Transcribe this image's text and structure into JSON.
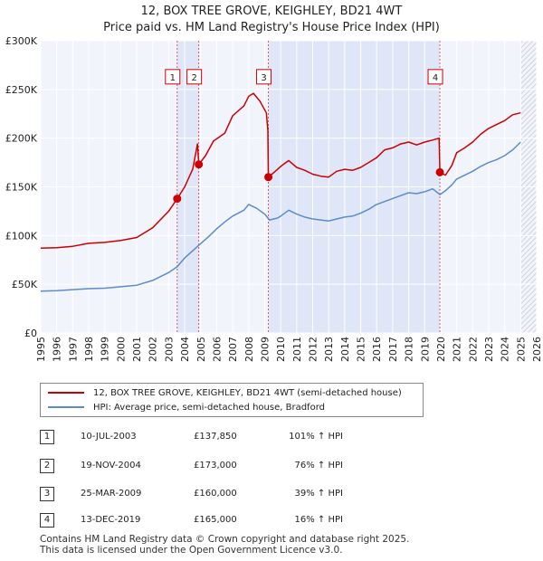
{
  "title": {
    "line1": "12, BOX TREE GROVE, KEIGHLEY, BD21 4WT",
    "line2": "Price paid vs. HM Land Registry's House Price Index (HPI)"
  },
  "chart_data": {
    "type": "line",
    "x_range": [
      1995,
      2026
    ],
    "y_range": [
      0,
      300000
    ],
    "y_ticks": [
      {
        "value": 0,
        "label": "£0"
      },
      {
        "value": 50000,
        "label": "£50K"
      },
      {
        "value": 100000,
        "label": "£100K"
      },
      {
        "value": 150000,
        "label": "£150K"
      },
      {
        "value": 200000,
        "label": "£200K"
      },
      {
        "value": 250000,
        "label": "£250K"
      },
      {
        "value": 300000,
        "label": "£300K"
      }
    ],
    "x_ticks": [
      "1995",
      "1996",
      "1997",
      "1998",
      "1999",
      "2000",
      "2001",
      "2002",
      "2003",
      "2004",
      "2005",
      "2006",
      "2007",
      "2008",
      "2009",
      "2010",
      "2011",
      "2012",
      "2013",
      "2014",
      "2015",
      "2016",
      "2017",
      "2018",
      "2019",
      "2020",
      "2021",
      "2022",
      "2023",
      "2024",
      "2025",
      "2026"
    ],
    "shaded_periods": [
      [
        2003.53,
        2004.88
      ],
      [
        2009.23,
        2019.95
      ]
    ],
    "hatched_from": 2025.0,
    "series": [
      {
        "name": "12, BOX TREE GROVE, KEIGHLEY, BD21 4WT (semi-detached house)",
        "color": "#cc0000",
        "points": [
          [
            1995,
            87000
          ],
          [
            1996,
            87500
          ],
          [
            1997,
            89000
          ],
          [
            1998,
            92000
          ],
          [
            1999,
            93000
          ],
          [
            2000,
            95000
          ],
          [
            2001,
            98000
          ],
          [
            2002,
            108000
          ],
          [
            2003,
            125000
          ],
          [
            2003.53,
            137850
          ],
          [
            2004,
            150000
          ],
          [
            2004.5,
            168000
          ],
          [
            2004.8,
            194000
          ],
          [
            2004.88,
            173000
          ],
          [
            2005.3,
            182000
          ],
          [
            2005.8,
            197000
          ],
          [
            2006.5,
            205000
          ],
          [
            2007,
            223000
          ],
          [
            2007.7,
            233000
          ],
          [
            2008,
            243000
          ],
          [
            2008.3,
            246000
          ],
          [
            2008.7,
            238000
          ],
          [
            2009.1,
            226000
          ],
          [
            2009.2,
            208000
          ],
          [
            2009.23,
            160000
          ],
          [
            2009.6,
            165000
          ],
          [
            2010,
            171000
          ],
          [
            2010.5,
            177000
          ],
          [
            2011,
            170000
          ],
          [
            2011.5,
            167000
          ],
          [
            2012,
            163000
          ],
          [
            2012.5,
            161000
          ],
          [
            2013,
            160000
          ],
          [
            2013.5,
            166000
          ],
          [
            2014,
            168000
          ],
          [
            2014.5,
            167000
          ],
          [
            2015,
            170000
          ],
          [
            2015.5,
            175000
          ],
          [
            2016,
            180000
          ],
          [
            2016.5,
            188000
          ],
          [
            2017,
            190000
          ],
          [
            2017.5,
            194000
          ],
          [
            2018,
            196000
          ],
          [
            2018.5,
            193000
          ],
          [
            2019,
            196000
          ],
          [
            2019.5,
            198000
          ],
          [
            2019.9,
            200000
          ],
          [
            2019.95,
            165000
          ],
          [
            2020.3,
            162000
          ],
          [
            2020.7,
            172000
          ],
          [
            2021,
            185000
          ],
          [
            2021.5,
            190000
          ],
          [
            2022,
            196000
          ],
          [
            2022.5,
            204000
          ],
          [
            2023,
            210000
          ],
          [
            2023.5,
            214000
          ],
          [
            2024,
            218000
          ],
          [
            2024.5,
            224000
          ],
          [
            2025,
            226000
          ]
        ]
      },
      {
        "name": "HPI: Average price, semi-detached house, Bradford",
        "color": "#5b8cc8",
        "points": [
          [
            1995,
            43000
          ],
          [
            1996,
            43500
          ],
          [
            1997,
            44500
          ],
          [
            1998,
            45500
          ],
          [
            1999,
            46000
          ],
          [
            2000,
            47500
          ],
          [
            2001,
            49000
          ],
          [
            2002,
            54000
          ],
          [
            2003,
            62000
          ],
          [
            2003.53,
            68000
          ],
          [
            2004,
            77000
          ],
          [
            2004.88,
            90000
          ],
          [
            2005.5,
            99000
          ],
          [
            2006,
            107000
          ],
          [
            2006.5,
            114000
          ],
          [
            2007,
            120000
          ],
          [
            2007.7,
            126000
          ],
          [
            2008,
            132000
          ],
          [
            2008.5,
            128000
          ],
          [
            2009,
            122000
          ],
          [
            2009.3,
            116000
          ],
          [
            2009.8,
            118000
          ],
          [
            2010,
            120000
          ],
          [
            2010.5,
            126000
          ],
          [
            2011,
            122000
          ],
          [
            2011.5,
            119000
          ],
          [
            2012,
            117000
          ],
          [
            2012.5,
            116000
          ],
          [
            2013,
            115000
          ],
          [
            2013.5,
            117000
          ],
          [
            2014,
            119000
          ],
          [
            2014.5,
            120000
          ],
          [
            2015,
            123000
          ],
          [
            2015.5,
            127000
          ],
          [
            2016,
            132000
          ],
          [
            2016.5,
            135000
          ],
          [
            2017,
            138000
          ],
          [
            2017.5,
            141000
          ],
          [
            2018,
            144000
          ],
          [
            2018.5,
            143000
          ],
          [
            2019,
            145000
          ],
          [
            2019.5,
            148000
          ],
          [
            2019.95,
            142000
          ],
          [
            2020.3,
            146000
          ],
          [
            2020.7,
            152000
          ],
          [
            2021,
            158000
          ],
          [
            2021.5,
            162000
          ],
          [
            2022,
            166000
          ],
          [
            2022.5,
            171000
          ],
          [
            2023,
            175000
          ],
          [
            2023.5,
            178000
          ],
          [
            2024,
            182000
          ],
          [
            2024.5,
            188000
          ],
          [
            2025,
            196000
          ]
        ]
      }
    ],
    "transactions": [
      {
        "id": "1",
        "x": 2003.53,
        "price": 137850
      },
      {
        "id": "2",
        "x": 2004.88,
        "price": 173000
      },
      {
        "id": "3",
        "x": 2009.23,
        "price": 160000
      },
      {
        "id": "4",
        "x": 2019.95,
        "price": 165000
      }
    ],
    "marker_label_y": 263000
  },
  "legend": {
    "red_label": "12, BOX TREE GROVE, KEIGHLEY, BD21 4WT (semi-detached house)",
    "blue_label": "HPI: Average price, semi-detached house, Bradford",
    "red_color": "#cc0000",
    "blue_color": "#5b8cc8"
  },
  "table": [
    {
      "num": "1",
      "date": "10-JUL-2003",
      "price": "£137,850",
      "hpi": "101% ↑ HPI"
    },
    {
      "num": "2",
      "date": "19-NOV-2004",
      "price": "£173,000",
      "hpi": "76% ↑ HPI"
    },
    {
      "num": "3",
      "date": "25-MAR-2009",
      "price": "£160,000",
      "hpi": "39% ↑ HPI"
    },
    {
      "num": "4",
      "date": "13-DEC-2019",
      "price": "£165,000",
      "hpi": "16% ↑ HPI"
    }
  ],
  "footer": {
    "line1": "Contains HM Land Registry data © Crown copyright and database right 2025.",
    "line2": "This data is licensed under the Open Government Licence v3.0."
  }
}
